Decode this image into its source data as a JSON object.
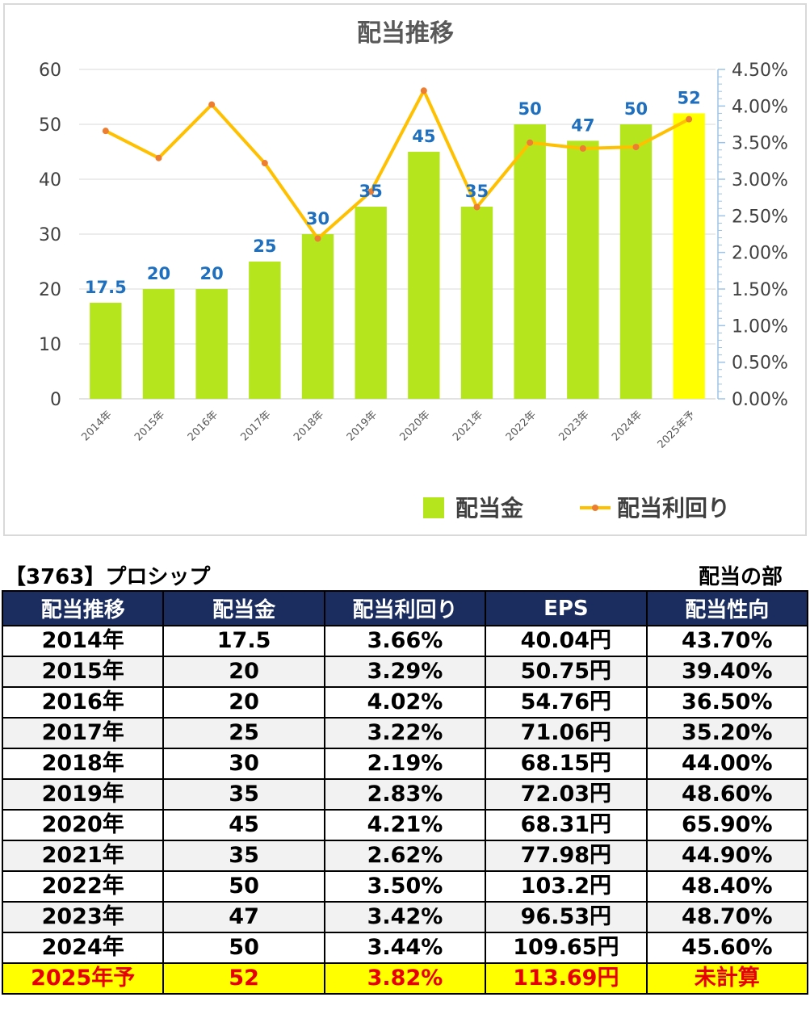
{
  "chart_data": {
    "type": "bar",
    "title": "配当推移",
    "categories": [
      "2014年",
      "2015年",
      "2016年",
      "2017年",
      "2018年",
      "2019年",
      "2020年",
      "2021年",
      "2022年",
      "2023年",
      "2024年",
      "2025年予"
    ],
    "series": [
      {
        "name": "配当金",
        "type": "bar",
        "axis": "left",
        "values": [
          17.5,
          20,
          20,
          25,
          30,
          35,
          45,
          35,
          50,
          47,
          50,
          52
        ],
        "labels": [
          "17.5",
          "20",
          "20",
          "25",
          "30",
          "35",
          "45",
          "35",
          "50",
          "47",
          "50",
          "52"
        ],
        "color": "#b5e61d",
        "highlight_color": "#ffff00",
        "highlight_index": 11
      },
      {
        "name": "配当利回り",
        "type": "line",
        "axis": "right",
        "values": [
          3.66,
          3.29,
          4.02,
          3.22,
          2.19,
          2.83,
          4.21,
          2.62,
          3.5,
          3.42,
          3.44,
          3.82
        ],
        "color": "#ffc000",
        "marker_color": "#ed7d31"
      }
    ],
    "y_left": {
      "range": [
        0,
        60
      ],
      "ticks": [
        "0",
        "10",
        "20",
        "30",
        "40",
        "50",
        "60"
      ]
    },
    "y_right": {
      "range": [
        0,
        4.5
      ],
      "ticks": [
        "0.00%",
        "0.50%",
        "1.00%",
        "1.50%",
        "2.00%",
        "2.50%",
        "3.00%",
        "3.50%",
        "4.00%",
        "4.50%"
      ]
    },
    "grid": "horizontal",
    "legend": "bottom-right"
  },
  "caption": {
    "left": "【3763】プロシップ",
    "right": "配当の部"
  },
  "table": {
    "headers": [
      "配当推移",
      "配当金",
      "配当利回り",
      "EPS",
      "配当性向"
    ],
    "rows": [
      [
        "2014年",
        "17.5",
        "3.66%",
        "40.04円",
        "43.70%"
      ],
      [
        "2015年",
        "20",
        "3.29%",
        "50.75円",
        "39.40%"
      ],
      [
        "2016年",
        "20",
        "4.02%",
        "54.76円",
        "36.50%"
      ],
      [
        "2017年",
        "25",
        "3.22%",
        "71.06円",
        "35.20%"
      ],
      [
        "2018年",
        "30",
        "2.19%",
        "68.15円",
        "44.00%"
      ],
      [
        "2019年",
        "35",
        "2.83%",
        "72.03円",
        "48.60%"
      ],
      [
        "2020年",
        "45",
        "4.21%",
        "68.31円",
        "65.90%"
      ],
      [
        "2021年",
        "35",
        "2.62%",
        "77.98円",
        "44.90%"
      ],
      [
        "2022年",
        "50",
        "3.50%",
        "103.2円",
        "48.40%"
      ],
      [
        "2023年",
        "47",
        "3.42%",
        "96.53円",
        "48.70%"
      ],
      [
        "2024年",
        "50",
        "3.44%",
        "109.65円",
        "45.60%"
      ],
      [
        "2025年予",
        "52",
        "3.82%",
        "113.69円",
        "未計算"
      ]
    ],
    "forecast_row_index": 11
  }
}
